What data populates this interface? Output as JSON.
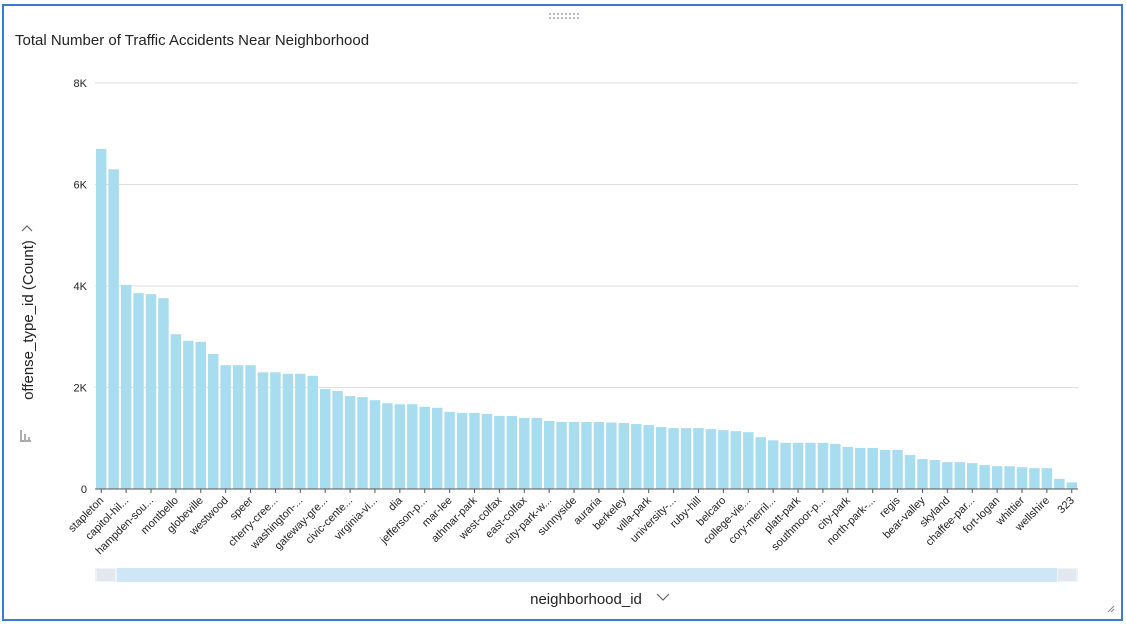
{
  "chart_data": {
    "type": "bar",
    "title": "Total Number of Traffic Accidents Near Neighborhood",
    "x_label": "neighborhood_id",
    "y_label": "offense_type_id (Count)",
    "color": "#a8ddf0",
    "grid": true,
    "ylim": [
      0,
      8000
    ],
    "yticks": [
      0,
      {
        "value": 2000,
        "label": "2K"
      },
      {
        "value": 4000,
        "label": "4K"
      },
      {
        "value": 6000,
        "label": "6K"
      },
      {
        "value": 8000,
        "label": "8K"
      }
    ],
    "categories": [
      "stapleton",
      null,
      "capitol-hil...",
      null,
      "hampden-sou...",
      null,
      "montbello",
      null,
      "globeville",
      null,
      "westwood",
      null,
      "speer",
      null,
      "cherry-cree...",
      null,
      "washington-...",
      null,
      "gateway-gre...",
      null,
      "civic-cente...",
      null,
      "virginia-vi...",
      null,
      "dia",
      null,
      "jefferson-p...",
      null,
      "mar-lee",
      null,
      "athmar-park",
      null,
      "west-colfax",
      null,
      "east-colfax",
      null,
      "city-park-w...",
      null,
      "sunnyside",
      null,
      "auraria",
      null,
      "berkeley",
      null,
      "villa-park",
      null,
      "university-...",
      null,
      "ruby-hill",
      null,
      "belcaro",
      null,
      "college-vie...",
      null,
      "cory-merril...",
      null,
      "platt-park",
      null,
      "southmoor-p...",
      null,
      "city-park",
      null,
      "north-park-...",
      null,
      "regis",
      null,
      "bear-valley",
      null,
      "skyland",
      null,
      "chaffee-par...",
      null,
      "fort-logan",
      null,
      "whittier",
      null,
      "wellshire",
      null,
      "323"
    ],
    "values": [
      6700,
      6300,
      4020,
      3860,
      3840,
      3760,
      3050,
      2920,
      2900,
      2660,
      2440,
      2440,
      2440,
      2300,
      2300,
      2270,
      2270,
      2230,
      1970,
      1930,
      1830,
      1810,
      1750,
      1690,
      1670,
      1670,
      1620,
      1600,
      1520,
      1500,
      1500,
      1480,
      1440,
      1440,
      1400,
      1400,
      1340,
      1320,
      1320,
      1320,
      1320,
      1310,
      1300,
      1280,
      1260,
      1220,
      1200,
      1200,
      1200,
      1180,
      1160,
      1140,
      1120,
      1020,
      960,
      910,
      910,
      910,
      910,
      890,
      830,
      810,
      810,
      770,
      770,
      670,
      590,
      570,
      530,
      530,
      510,
      470,
      450,
      450,
      430,
      410,
      410,
      200,
      130
    ]
  }
}
